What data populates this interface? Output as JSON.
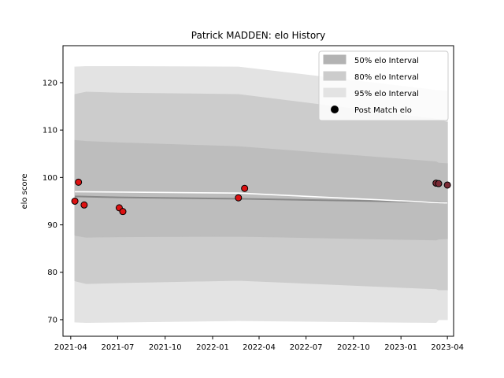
{
  "chart_data": {
    "type": "area",
    "title": "Patrick MADDEN: elo History",
    "xlabel": "",
    "ylabel": "elo score",
    "x_type": "date",
    "xlim": [
      "2021-03-17",
      "2023-04-13"
    ],
    "ylim": [
      66.5,
      127.8
    ],
    "x_ticks": [
      "2021-04-01",
      "2021-07-01",
      "2021-10-01",
      "2022-01-01",
      "2022-04-01",
      "2022-07-01",
      "2022-10-01",
      "2023-01-01",
      "2023-04-01"
    ],
    "x_tick_labels": [
      "2021-04",
      "2021-07",
      "2021-10",
      "2022-01",
      "2022-04",
      "2022-07",
      "2022-10",
      "2023-01",
      "2023-04"
    ],
    "y_ticks": [
      70,
      80,
      90,
      100,
      110,
      120
    ],
    "y_tick_labels": [
      "70",
      "80",
      "90",
      "100",
      "110",
      "120"
    ],
    "grid": false,
    "legend_position": "top-right",
    "legend": [
      {
        "label": "50% elo Interval",
        "kind": "patch",
        "color": "#b3b3b3"
      },
      {
        "label": "80% elo Interval",
        "kind": "patch",
        "color": "#cccccc"
      },
      {
        "label": "95% elo Interval",
        "kind": "patch",
        "color": "#e3e3e3"
      },
      {
        "label": "Post Match elo",
        "kind": "marker",
        "color": "#000000"
      }
    ],
    "bands": [
      {
        "name": "95% elo Interval",
        "color": "#e3e3e3",
        "x": [
          "2021-04-09",
          "2021-05-01",
          "2021-07-04",
          "2022-02-20",
          "2023-03-10",
          "2023-03-15",
          "2023-04-01"
        ],
        "upper": [
          123.3,
          123.4,
          123.4,
          123.3,
          118.4,
          118.4,
          118.2
        ],
        "lower": [
          69.5,
          69.4,
          69.5,
          69.8,
          69.4,
          70.0,
          70.0
        ]
      },
      {
        "name": "80% elo Interval",
        "color": "#cccccc",
        "x": [
          "2021-04-09",
          "2021-05-01",
          "2021-07-04",
          "2022-02-20",
          "2023-03-10",
          "2023-03-15",
          "2023-04-01"
        ],
        "upper": [
          117.5,
          118.0,
          117.8,
          117.5,
          112.3,
          112.2,
          111.6
        ],
        "lower": [
          78.2,
          77.6,
          77.8,
          78.3,
          76.5,
          76.3,
          76.3
        ]
      },
      {
        "name": "50% elo Interval",
        "color": "#bdbdbd",
        "x": [
          "2021-04-09",
          "2021-05-01",
          "2021-07-04",
          "2022-02-20",
          "2023-03-10",
          "2023-03-15",
          "2023-04-01"
        ],
        "upper": [
          107.8,
          107.6,
          107.3,
          106.5,
          103.3,
          103.0,
          102.9
        ],
        "lower": [
          87.8,
          87.4,
          87.5,
          87.6,
          86.8,
          87.0,
          87.1
        ]
      }
    ],
    "mean_line": {
      "color": "#888888",
      "x": [
        "2021-04-09",
        "2021-07-04",
        "2022-02-20",
        "2023-03-15",
        "2023-04-01"
      ],
      "y": [
        96.0,
        95.8,
        95.5,
        94.8,
        94.6
      ]
    },
    "trend_line": {
      "color": "#ffffff",
      "x": [
        "2021-04-09",
        "2022-02-20",
        "2023-04-01"
      ],
      "y": [
        97.0,
        96.7,
        94.6
      ]
    },
    "points": {
      "name": "Post Match elo",
      "x": [
        "2021-04-09",
        "2021-04-16",
        "2021-04-27",
        "2021-07-04",
        "2021-07-11",
        "2022-02-20",
        "2022-03-04",
        "2023-03-10",
        "2023-03-15",
        "2023-04-01"
      ],
      "y": [
        95.0,
        99.0,
        94.2,
        93.6,
        92.8,
        95.7,
        97.7,
        98.8,
        98.7,
        98.4
      ],
      "colors": [
        "#dd1111",
        "#dd1111",
        "#dd1111",
        "#dd1111",
        "#dd1111",
        "#dd1111",
        "#dd1111",
        "#7a2a35",
        "#7a2a35",
        "#7a2a35"
      ]
    }
  }
}
